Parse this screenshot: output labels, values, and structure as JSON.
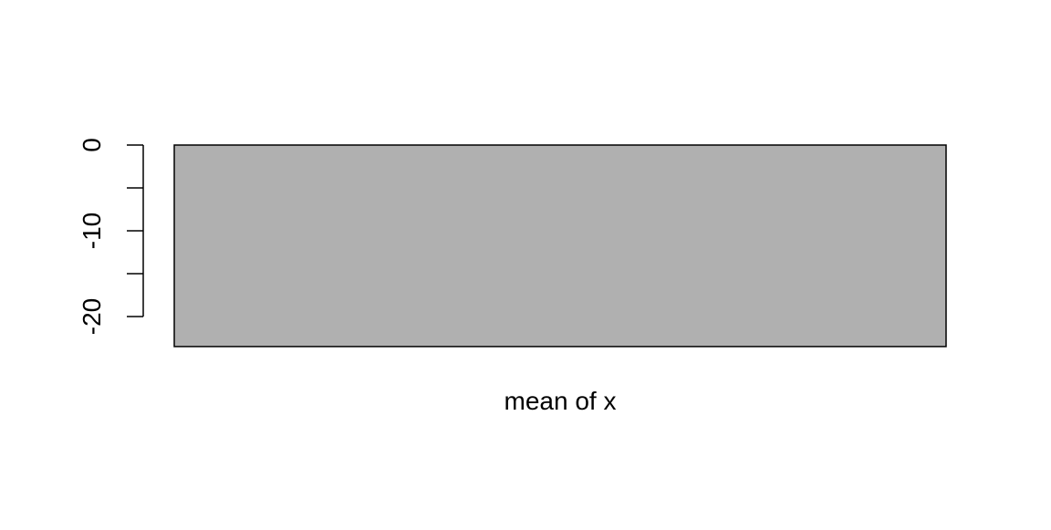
{
  "chart_data": {
    "type": "bar",
    "categories": [
      ""
    ],
    "values": [
      -23.5
    ],
    "title": "",
    "xlabel": "",
    "ylabel": "",
    "yticks": [
      0,
      -10,
      -20
    ],
    "yticks_minor": [
      -5,
      -15
    ],
    "ylim": [
      -23.5,
      0
    ],
    "grid": false,
    "legend": "none",
    "bar_fill": "#b0b0b0",
    "bar_stroke": "#000000",
    "annotation": "mean of x"
  }
}
